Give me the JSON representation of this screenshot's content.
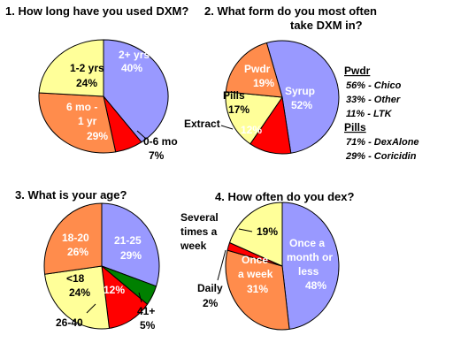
{
  "colors": {
    "blue": "#9999ff",
    "orange": "#ff8c4c",
    "yellow": "#ffff99",
    "red": "#ff0000",
    "green": "#008000"
  },
  "chart_data": [
    {
      "type": "pie",
      "title": "1. How long have you used DXM?",
      "slices": [
        {
          "label": "2+ yrs",
          "value": 40,
          "pct": "40%",
          "color": "blue"
        },
        {
          "label": "0-6 mo",
          "value": 7,
          "pct": "7%",
          "color": "red"
        },
        {
          "label": "6 mo - 1 yr",
          "value": 29,
          "pct": "29%",
          "color": "orange"
        },
        {
          "label": "1-2 yrs",
          "value": 24,
          "pct": "24%",
          "color": "yellow"
        }
      ]
    },
    {
      "type": "pie",
      "title_line1": "2. What form do you most often",
      "title_line2": "take DXM in?",
      "slices": [
        {
          "label": "Syrup",
          "value": 52,
          "pct": "52%",
          "color": "blue"
        },
        {
          "label": "Extract",
          "value": 12,
          "pct": "12%",
          "color": "red"
        },
        {
          "label": "Pills",
          "value": 17,
          "pct": "17%",
          "color": "yellow"
        },
        {
          "label": "Pwdr",
          "value": 19,
          "pct": "19%",
          "color": "orange"
        }
      ],
      "annotations": {
        "pwdr_header": "Pwdr",
        "pwdr_items": [
          "56% - Chico",
          "33% - Other",
          "11% - LTK"
        ],
        "pills_header": "Pills",
        "pills_items": [
          "71% - DexAlone",
          "29% - Coricidin"
        ]
      }
    },
    {
      "type": "pie",
      "title": "3. What is your age?",
      "slices": [
        {
          "label": "21-25",
          "value": 29,
          "pct": "29%",
          "color": "blue"
        },
        {
          "label": "41+",
          "value": 5,
          "pct": "5%",
          "color": "green"
        },
        {
          "label": "26-40",
          "value": 12,
          "pct": "12%",
          "color": "red"
        },
        {
          "label": "<18",
          "value": 24,
          "pct": "24%",
          "color": "yellow"
        },
        {
          "label": "18-20",
          "value": 26,
          "pct": "26%",
          "color": "orange"
        }
      ]
    },
    {
      "type": "pie",
      "title": "4. How often do you dex?",
      "slices": [
        {
          "label": "Once a month or less",
          "value": 48,
          "pct": "48%",
          "color": "blue"
        },
        {
          "label": "Once a week",
          "value": 31,
          "pct": "31%",
          "color": "orange"
        },
        {
          "label": "Daily",
          "value": 2,
          "pct": "2%",
          "color": "red"
        },
        {
          "label": "Several times a week",
          "value": 19,
          "pct": "19%",
          "color": "yellow"
        }
      ]
    }
  ]
}
